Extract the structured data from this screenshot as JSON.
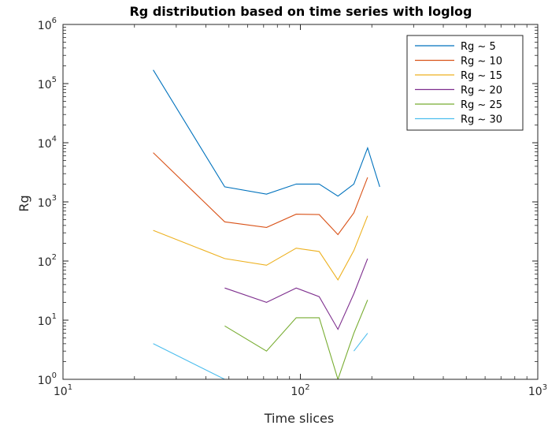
{
  "chart_data": {
    "type": "line",
    "title": "Rg distribution based on time series with loglog",
    "xlabel": "Time slices",
    "ylabel": "Rg",
    "xscale": "log",
    "yscale": "log",
    "xlim": [
      10,
      1000
    ],
    "ylim": [
      1,
      1000000
    ],
    "x_ticks": [
      {
        "base": "10",
        "exp": "1",
        "value": 10
      },
      {
        "base": "10",
        "exp": "2",
        "value": 100
      },
      {
        "base": "10",
        "exp": "3",
        "value": 1000
      }
    ],
    "y_ticks": [
      {
        "base": "10",
        "exp": "0",
        "value": 1
      },
      {
        "base": "10",
        "exp": "1",
        "value": 10
      },
      {
        "base": "10",
        "exp": "2",
        "value": 100
      },
      {
        "base": "10",
        "exp": "3",
        "value": 1000
      },
      {
        "base": "10",
        "exp": "4",
        "value": 10000
      },
      {
        "base": "10",
        "exp": "5",
        "value": 100000
      },
      {
        "base": "10",
        "exp": "6",
        "value": 1000000
      }
    ],
    "grid": false,
    "legend_position": "top-right",
    "series": [
      {
        "name": "Rg ~ 5",
        "color": "#0072BD",
        "points": [
          [
            24,
            170000
          ],
          [
            48,
            1800
          ],
          [
            72,
            1350
          ],
          [
            96,
            2000
          ],
          [
            120,
            2000
          ],
          [
            144,
            1250
          ],
          [
            168,
            2000
          ],
          [
            192,
            8200
          ],
          [
            216,
            1800
          ]
        ]
      },
      {
        "name": "Rg ~ 10",
        "color": "#D95319",
        "points": [
          [
            24,
            6800
          ],
          [
            48,
            460
          ],
          [
            72,
            370
          ],
          [
            96,
            620
          ],
          [
            120,
            610
          ],
          [
            144,
            280
          ],
          [
            168,
            650
          ],
          [
            192,
            2600
          ]
        ]
      },
      {
        "name": "Rg ~ 15",
        "color": "#EDB120",
        "points": [
          [
            24,
            330
          ],
          [
            48,
            110
          ],
          [
            72,
            85
          ],
          [
            96,
            165
          ],
          [
            120,
            145
          ],
          [
            144,
            48
          ],
          [
            168,
            150
          ],
          [
            192,
            580
          ]
        ]
      },
      {
        "name": "Rg ~ 20",
        "color": "#7E2F8E",
        "points": [
          [
            48,
            35
          ],
          [
            72,
            20
          ],
          [
            96,
            35
          ],
          [
            120,
            25
          ],
          [
            144,
            7
          ],
          [
            168,
            28
          ],
          [
            192,
            110
          ]
        ]
      },
      {
        "name": "Rg ~ 25",
        "color": "#77AC30",
        "points": [
          [
            48,
            8
          ],
          [
            72,
            3
          ],
          [
            96,
            11
          ],
          [
            120,
            11
          ],
          [
            144,
            1
          ],
          [
            168,
            6
          ],
          [
            192,
            22
          ]
        ]
      },
      {
        "name": "Rg ~ 30",
        "color": "#4DBEEE",
        "segments": [
          [
            [
              24,
              4
            ],
            [
              48,
              1
            ],
            [
              72,
              1
            ],
            [
              96,
              1
            ],
            [
              120,
              1
            ]
          ],
          [
            [
              168,
              3
            ],
            [
              192,
              6
            ]
          ]
        ]
      }
    ]
  }
}
